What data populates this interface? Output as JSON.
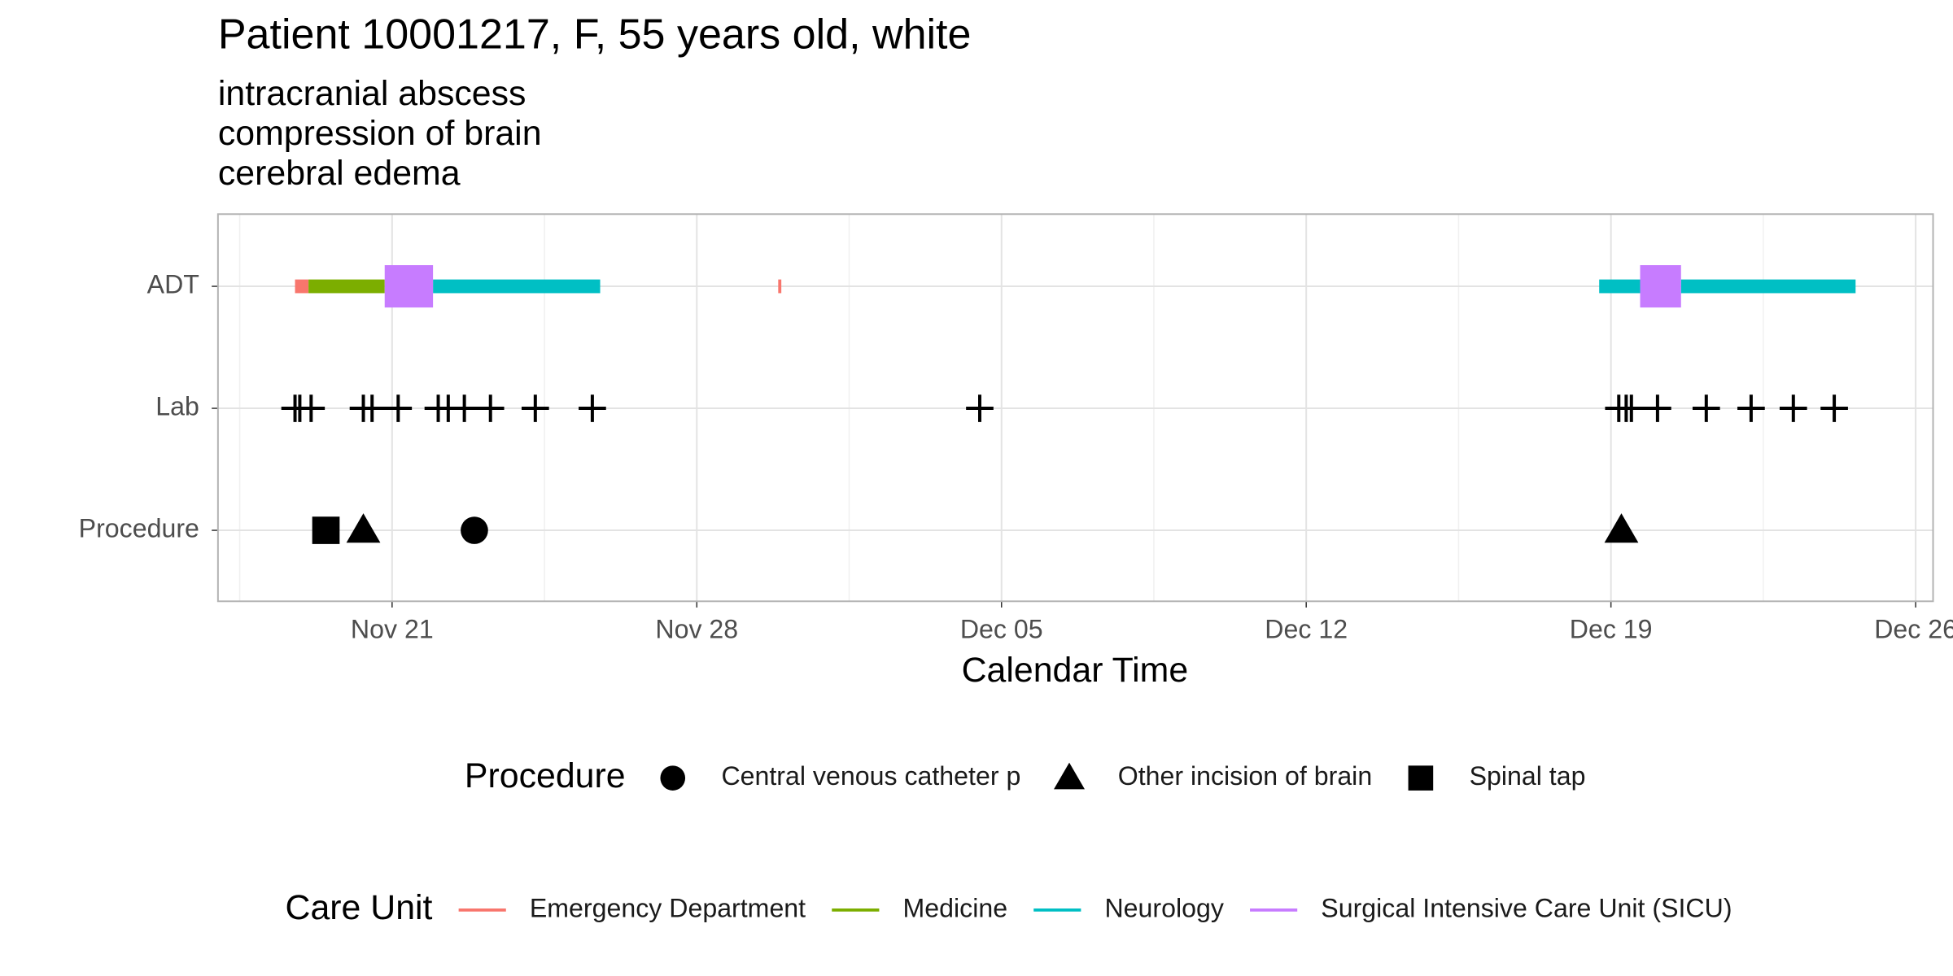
{
  "chart_data": {
    "type": "timeline",
    "title": "Patient 10001217, F, 55 years old, white",
    "subtitle": [
      "intracranial abscess",
      "compression of brain",
      "cerebral edema"
    ],
    "x_label": "Calendar Time",
    "categories": [
      "ADT",
      "Lab",
      "Procedure"
    ],
    "xlim": [
      17,
      56.4
    ],
    "xticks": [
      {
        "value": 21,
        "label": "Nov 21"
      },
      {
        "value": 28,
        "label": "Nov 28"
      },
      {
        "value": 35,
        "label": "Dec 05"
      },
      {
        "value": 42,
        "label": "Dec 12"
      },
      {
        "value": 49,
        "label": "Dec 19"
      },
      {
        "value": 56,
        "label": "Dec 26"
      }
    ],
    "grid": true,
    "adt": {
      "legend_title": "Care Unit",
      "series": [
        {
          "name": "Emergency Department",
          "color": "#F8766D",
          "start": [
            18.77,
            29.87
          ],
          "end": [
            19.08,
            29.92
          ]
        },
        {
          "name": "Medicine",
          "color": "#7CAE00",
          "start": [
            19.08
          ],
          "end": [
            20.83
          ]
        },
        {
          "name": "Neurology",
          "color": "#00BFC4",
          "start": [
            21.94,
            48.73,
            50.61
          ],
          "end": [
            25.78,
            49.67,
            54.62
          ]
        },
        {
          "name": "Surgical Intensive Care Unit (SICU)",
          "color": "#C77CFF",
          "start": [
            20.83,
            49.67
          ],
          "end": [
            21.94,
            50.61
          ]
        }
      ]
    },
    "lab": {
      "x": [
        18.77,
        18.88,
        19.14,
        20.34,
        20.54,
        21.14,
        22.06,
        22.29,
        22.66,
        23.26,
        24.29,
        25.6,
        34.5,
        49.18,
        49.35,
        49.47,
        50.07,
        51.19,
        52.22,
        53.19,
        54.13
      ]
    },
    "procedure": {
      "legend_title": "Procedure",
      "series": [
        {
          "name": "Central venous catheter p",
          "shape": "circle",
          "x": [
            22.89
          ]
        },
        {
          "name": "Other incision of brain",
          "shape": "triangle",
          "x": [
            20.34,
            49.24
          ]
        },
        {
          "name": "Spinal tap",
          "shape": "square",
          "x": [
            19.48
          ]
        }
      ]
    }
  }
}
